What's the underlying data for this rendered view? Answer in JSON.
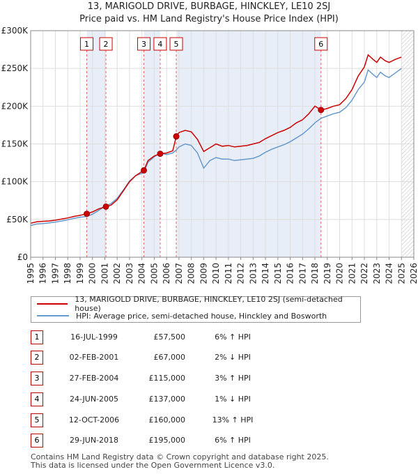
{
  "title_line1": "13, MARIGOLD DRIVE, BURBAGE, HINCKLEY, LE10 2SJ",
  "title_line2": "Price paid vs. HM Land Registry's House Price Index (HPI)",
  "colors": {
    "property": "#cc0000",
    "hpi": "#6699cc",
    "shade": "#e8eef8",
    "marker_line": "#dd6666"
  },
  "chart_data": {
    "type": "line",
    "xlim": [
      1995,
      2026
    ],
    "ylim": [
      0,
      300000
    ],
    "y_ticks": [
      {
        "value": 0,
        "label": "£0"
      },
      {
        "value": 50000,
        "label": "£50K"
      },
      {
        "value": 100000,
        "label": "£100K"
      },
      {
        "value": 150000,
        "label": "£150K"
      },
      {
        "value": 200000,
        "label": "£200K"
      },
      {
        "value": 250000,
        "label": "£250K"
      },
      {
        "value": 300000,
        "label": "£300K"
      }
    ],
    "x_ticks": [
      "1995",
      "1996",
      "1997",
      "1998",
      "1999",
      "2000",
      "2001",
      "2002",
      "2003",
      "2004",
      "2005",
      "2006",
      "2007",
      "2008",
      "2009",
      "2010",
      "2011",
      "2012",
      "2013",
      "2014",
      "2015",
      "2016",
      "2017",
      "2018",
      "2019",
      "2020",
      "2021",
      "2022",
      "2023",
      "2024",
      "2025",
      "2026"
    ],
    "shaded_spans": [
      [
        1999.54,
        2001.09
      ],
      [
        2004.16,
        2005.48
      ],
      [
        2006.78,
        2018.49
      ]
    ],
    "data_end": 2025.0,
    "grid": true,
    "sales": [
      {
        "n": "1",
        "x": 1999.54,
        "y": 57500
      },
      {
        "n": "2",
        "x": 2001.09,
        "y": 67000
      },
      {
        "n": "3",
        "x": 2004.16,
        "y": 115000
      },
      {
        "n": "4",
        "x": 2005.48,
        "y": 137000
      },
      {
        "n": "5",
        "x": 2006.78,
        "y": 160000
      },
      {
        "n": "6",
        "x": 2018.49,
        "y": 195000
      }
    ],
    "series": [
      {
        "name": "13, MARIGOLD DRIVE, BURBAGE, HINCKLEY, LE10 2SJ (semi-detached house)",
        "color": "#cc0000",
        "points": [
          [
            1995.0,
            45000
          ],
          [
            1995.5,
            47000
          ],
          [
            1996.0,
            47500
          ],
          [
            1996.5,
            48000
          ],
          [
            1997.0,
            49000
          ],
          [
            1997.5,
            50500
          ],
          [
            1998.0,
            52000
          ],
          [
            1998.5,
            54000
          ],
          [
            1999.0,
            55500
          ],
          [
            1999.54,
            57500
          ],
          [
            2000.0,
            60000
          ],
          [
            2000.5,
            64000
          ],
          [
            2001.09,
            67000
          ],
          [
            2001.5,
            69000
          ],
          [
            2002.0,
            76000
          ],
          [
            2002.5,
            88000
          ],
          [
            2003.0,
            100000
          ],
          [
            2003.5,
            108000
          ],
          [
            2004.16,
            115000
          ],
          [
            2004.5,
            128000
          ],
          [
            2005.0,
            134000
          ],
          [
            2005.48,
            137000
          ],
          [
            2006.0,
            138000
          ],
          [
            2006.5,
            141000
          ],
          [
            2006.78,
            160000
          ],
          [
            2007.0,
            165000
          ],
          [
            2007.5,
            168000
          ],
          [
            2008.0,
            166000
          ],
          [
            2008.5,
            156000
          ],
          [
            2009.0,
            140000
          ],
          [
            2009.5,
            145000
          ],
          [
            2010.0,
            150000
          ],
          [
            2010.5,
            147000
          ],
          [
            2011.0,
            148000
          ],
          [
            2011.5,
            146000
          ],
          [
            2012.0,
            147000
          ],
          [
            2012.5,
            148000
          ],
          [
            2013.0,
            150000
          ],
          [
            2013.5,
            152000
          ],
          [
            2014.0,
            157000
          ],
          [
            2014.5,
            161000
          ],
          [
            2015.0,
            165000
          ],
          [
            2015.5,
            168000
          ],
          [
            2016.0,
            172000
          ],
          [
            2016.5,
            178000
          ],
          [
            2017.0,
            182000
          ],
          [
            2017.5,
            190000
          ],
          [
            2018.0,
            200000
          ],
          [
            2018.49,
            195000
          ],
          [
            2019.0,
            197000
          ],
          [
            2019.5,
            200000
          ],
          [
            2020.0,
            202000
          ],
          [
            2020.5,
            210000
          ],
          [
            2021.0,
            222000
          ],
          [
            2021.5,
            240000
          ],
          [
            2022.0,
            252000
          ],
          [
            2022.3,
            268000
          ],
          [
            2022.7,
            262000
          ],
          [
            2023.0,
            258000
          ],
          [
            2023.3,
            265000
          ],
          [
            2023.7,
            260000
          ],
          [
            2024.0,
            258000
          ],
          [
            2024.5,
            262000
          ],
          [
            2025.0,
            265000
          ]
        ]
      },
      {
        "name": "HPI: Average price, semi-detached house, Hinckley and Bosworth",
        "color": "#6699cc",
        "points": [
          [
            1995.0,
            42000
          ],
          [
            1995.5,
            44000
          ],
          [
            1996.0,
            44500
          ],
          [
            1996.5,
            45500
          ],
          [
            1997.0,
            46500
          ],
          [
            1997.5,
            48000
          ],
          [
            1998.0,
            49500
          ],
          [
            1998.5,
            51500
          ],
          [
            1999.0,
            53000
          ],
          [
            1999.54,
            54000
          ],
          [
            2000.0,
            57000
          ],
          [
            2000.5,
            62000
          ],
          [
            2001.09,
            68000
          ],
          [
            2001.5,
            71000
          ],
          [
            2002.0,
            78000
          ],
          [
            2002.5,
            89000
          ],
          [
            2003.0,
            101000
          ],
          [
            2003.5,
            108000
          ],
          [
            2004.16,
            112000
          ],
          [
            2004.5,
            126000
          ],
          [
            2005.0,
            133000
          ],
          [
            2005.48,
            138000
          ],
          [
            2006.0,
            136000
          ],
          [
            2006.5,
            138000
          ],
          [
            2006.78,
            142000
          ],
          [
            2007.0,
            146000
          ],
          [
            2007.5,
            150000
          ],
          [
            2008.0,
            148000
          ],
          [
            2008.5,
            138000
          ],
          [
            2009.0,
            118000
          ],
          [
            2009.5,
            128000
          ],
          [
            2010.0,
            132000
          ],
          [
            2010.5,
            130000
          ],
          [
            2011.0,
            130000
          ],
          [
            2011.5,
            128000
          ],
          [
            2012.0,
            129000
          ],
          [
            2012.5,
            130000
          ],
          [
            2013.0,
            131000
          ],
          [
            2013.5,
            134000
          ],
          [
            2014.0,
            139000
          ],
          [
            2014.5,
            143000
          ],
          [
            2015.0,
            146000
          ],
          [
            2015.5,
            149000
          ],
          [
            2016.0,
            153000
          ],
          [
            2016.5,
            158000
          ],
          [
            2017.0,
            163000
          ],
          [
            2017.5,
            170000
          ],
          [
            2018.0,
            178000
          ],
          [
            2018.49,
            184000
          ],
          [
            2019.0,
            187000
          ],
          [
            2019.5,
            190000
          ],
          [
            2020.0,
            192000
          ],
          [
            2020.5,
            198000
          ],
          [
            2021.0,
            208000
          ],
          [
            2021.5,
            222000
          ],
          [
            2022.0,
            232000
          ],
          [
            2022.3,
            248000
          ],
          [
            2022.7,
            242000
          ],
          [
            2023.0,
            238000
          ],
          [
            2023.3,
            245000
          ],
          [
            2023.7,
            240000
          ],
          [
            2024.0,
            238000
          ],
          [
            2024.5,
            244000
          ],
          [
            2025.0,
            250000
          ]
        ]
      }
    ]
  },
  "legend": {
    "property": "13, MARIGOLD DRIVE, BURBAGE, HINCKLEY, LE10 2SJ (semi-detached house)",
    "hpi": "HPI: Average price, semi-detached house, Hinckley and Bosworth"
  },
  "sales_table": [
    {
      "n": "1",
      "date": "16-JUL-1999",
      "price": "£57,500",
      "hpi": "6% ↑ HPI"
    },
    {
      "n": "2",
      "date": "02-FEB-2001",
      "price": "£67,000",
      "hpi": "2% ↓ HPI"
    },
    {
      "n": "3",
      "date": "27-FEB-2004",
      "price": "£115,000",
      "hpi": "3% ↑ HPI"
    },
    {
      "n": "4",
      "date": "24-JUN-2005",
      "price": "£137,000",
      "hpi": "1% ↓ HPI"
    },
    {
      "n": "5",
      "date": "12-OCT-2006",
      "price": "£160,000",
      "hpi": "13% ↑ HPI"
    },
    {
      "n": "6",
      "date": "29-JUN-2018",
      "price": "£195,000",
      "hpi": "6% ↑ HPI"
    }
  ],
  "footer_line1": "Contains HM Land Registry data © Crown copyright and database right 2025.",
  "footer_line2": "This data is licensed under the Open Government Licence v3.0."
}
